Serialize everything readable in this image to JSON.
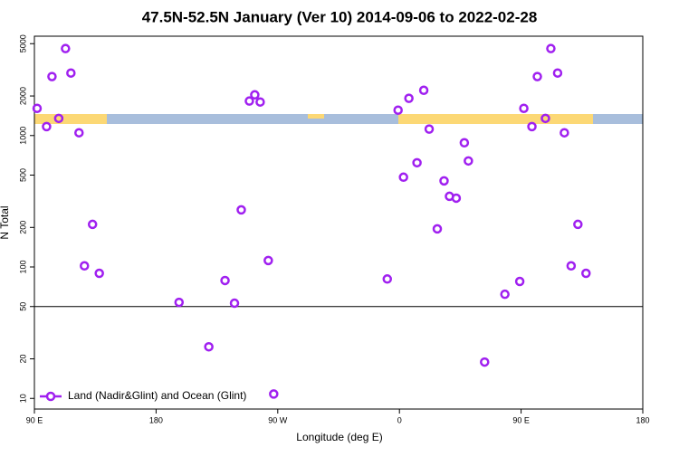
{
  "chart_data": {
    "type": "scatter",
    "title": "47.5N-52.5N January (Ver 10)   2014-09-06 to 2022-02-28",
    "xlabel": "Longitude (deg E)",
    "ylabel": "N Total",
    "log_y": true,
    "legend": "bottomleft",
    "hline": 50,
    "xlim": [
      90,
      540
    ],
    "xticks": [
      {
        "value": 90,
        "label": "90 E"
      },
      180,
      {
        "value": 270,
        "label": "90 W"
      },
      {
        "value": 360,
        "label": "0"
      },
      {
        "value": 450,
        "label": "90 E"
      },
      {
        "value": 540,
        "label": "180"
      }
    ],
    "ylim": [
      8.3,
      5700
    ],
    "yticks": [
      10,
      20,
      50,
      100,
      200,
      500,
      1000,
      2000,
      5000
    ],
    "series": [
      {
        "name": "Land (Nadir&Glint) and Ocean (Glint)",
        "color": "#a020f0",
        "x": [
          92,
          99,
          103,
          108,
          113,
          117,
          123,
          127,
          133,
          138,
          197,
          219,
          231,
          238,
          243,
          249,
          253,
          257,
          263,
          267,
          351,
          359,
          363,
          367,
          373,
          378,
          382,
          388,
          393,
          397,
          402,
          408,
          411,
          423,
          438,
          449,
          452,
          458,
          462,
          468,
          472,
          477,
          482,
          487,
          492,
          498
        ],
        "values": [
          1610,
          1170,
          2810,
          1350,
          4590,
          2990,
          1050,
          102,
          211,
          89.5,
          53.8,
          24.7,
          78.9,
          53,
          272,
          1830,
          2040,
          1800,
          112,
          10.8,
          81,
          1560,
          482,
          1920,
          621,
          2210,
          1120,
          195,
          452,
          345,
          334,
          881,
          641,
          18.9,
          62,
          77.6,
          1610,
          1170,
          2810,
          1350,
          4590,
          2990,
          1050,
          102,
          211,
          89.5
        ]
      }
    ]
  }
}
